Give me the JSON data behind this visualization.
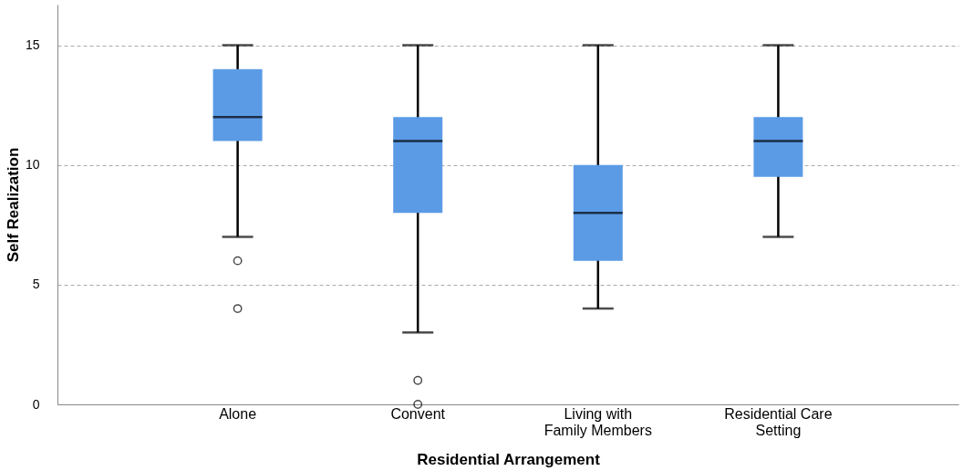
{
  "chart_data": {
    "type": "box",
    "xlabel": "Residential Arrangement",
    "ylabel": "Self Realization",
    "categories": [
      "Alone",
      "Convent",
      "Living with\nFamily Members",
      "Residential Care\nSetting"
    ],
    "color": "#5b9be6",
    "boxes": [
      {
        "low": 7,
        "q1": 11,
        "median": 12,
        "q3": 14,
        "high": 15,
        "outliers": [
          6,
          4
        ]
      },
      {
        "low": 3,
        "q1": 8,
        "median": 11,
        "q3": 12,
        "high": 15,
        "outliers": [
          1,
          0
        ]
      },
      {
        "low": 4,
        "q1": 6,
        "median": 8,
        "q3": 10,
        "high": 15
      },
      {
        "low": 7,
        "q1": 9.5,
        "median": 11,
        "q3": 12,
        "high": 15
      }
    ],
    "ylim": [
      0,
      16.7
    ],
    "yticks": [
      0,
      5,
      10,
      15
    ],
    "grid": "y"
  }
}
